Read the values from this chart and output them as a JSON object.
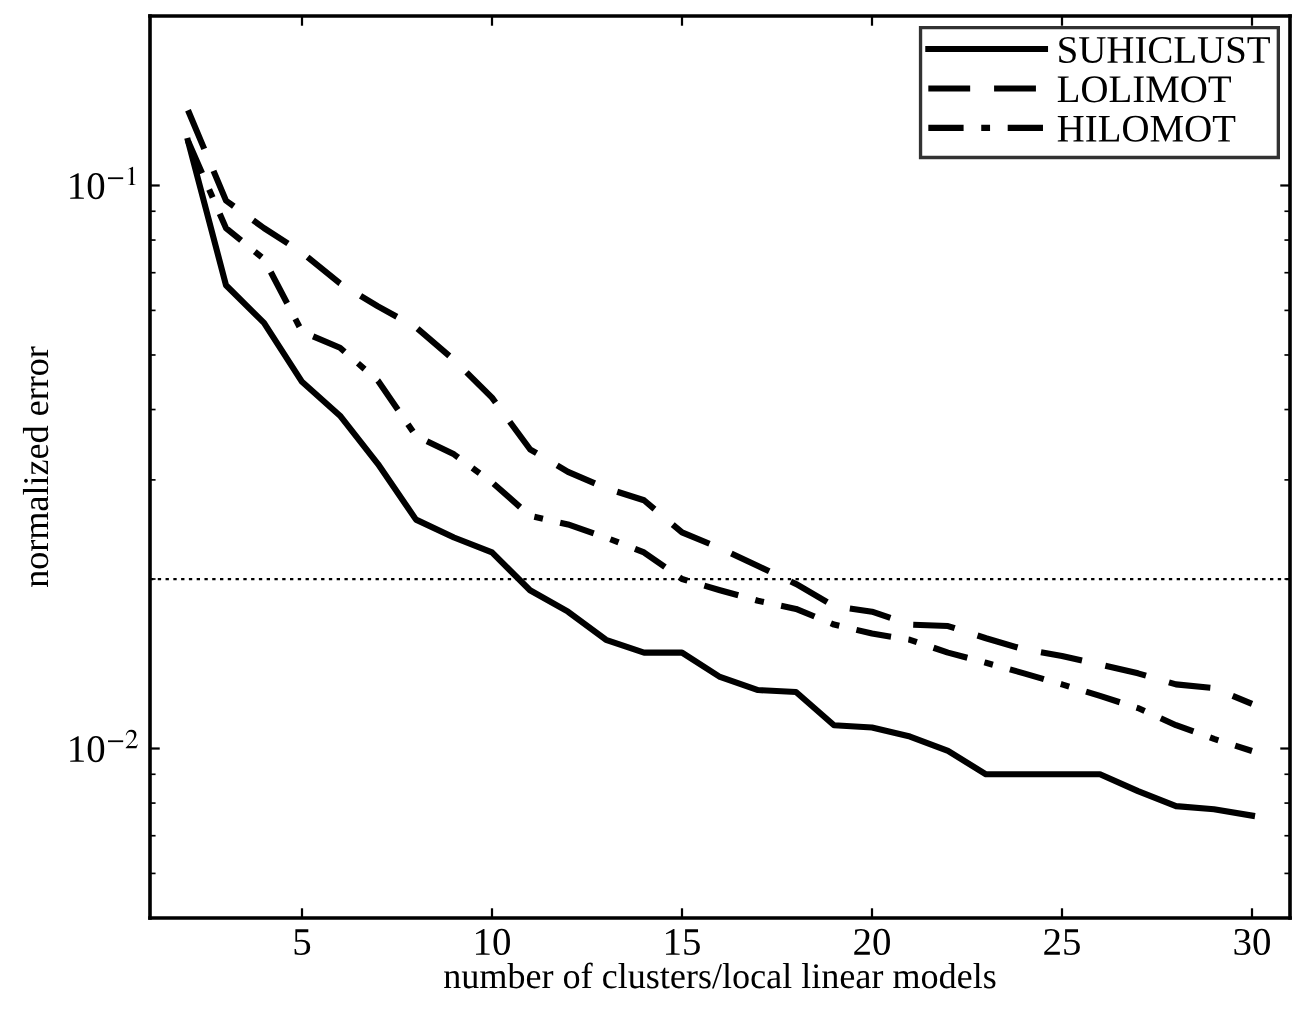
{
  "chart_data": {
    "type": "line",
    "xlabel": "number of clusters/local linear models",
    "ylabel": "normalized error",
    "x": [
      2,
      3,
      4,
      5,
      6,
      7,
      8,
      9,
      10,
      11,
      12,
      13,
      14,
      15,
      16,
      17,
      18,
      19,
      20,
      21,
      22,
      23,
      24,
      25,
      26,
      27,
      28,
      29,
      30
    ],
    "series": [
      {
        "name": "SUHICLUST",
        "color": "#000000",
        "line_style": "solid",
        "values": [
          0.12,
          0.0665,
          0.057,
          0.0448,
          0.039,
          0.032,
          0.0255,
          0.0237,
          0.0223,
          0.0191,
          0.0175,
          0.0156,
          0.0148,
          0.0148,
          0.0134,
          0.0127,
          0.0126,
          0.011,
          0.0109,
          0.0105,
          0.0099,
          0.009,
          0.009,
          0.009,
          0.009,
          0.0084,
          0.0079,
          0.0078,
          0.0076
        ]
      },
      {
        "name": "LOLIMOT",
        "color": "#000000",
        "line_style": "dashed",
        "values": [
          0.136,
          0.094,
          0.084,
          0.076,
          0.067,
          0.061,
          0.056,
          0.049,
          0.042,
          0.034,
          0.031,
          0.029,
          0.0276,
          0.0242,
          0.0227,
          0.0211,
          0.0196,
          0.0179,
          0.0175,
          0.0166,
          0.0165,
          0.0157,
          0.015,
          0.0146,
          0.0141,
          0.0136,
          0.013,
          0.0128,
          0.012
        ]
      },
      {
        "name": "HILOMOT",
        "color": "#000000",
        "line_style": "dashdot",
        "values": [
          0.12,
          0.084,
          0.074,
          0.055,
          0.0515,
          0.045,
          0.0359,
          0.0333,
          0.0297,
          0.0259,
          0.025,
          0.0237,
          0.0223,
          0.02,
          0.0191,
          0.0183,
          0.0177,
          0.0166,
          0.016,
          0.0156,
          0.0148,
          0.0142,
          0.0136,
          0.013,
          0.0124,
          0.0118,
          0.011,
          0.0104,
          0.0099
        ]
      }
    ],
    "log": "y",
    "xlim": [
      1,
      31
    ],
    "ylim": [
      0.005,
      0.2
    ],
    "xticks": [
      5,
      10,
      15,
      20,
      25,
      30
    ],
    "yticks": [
      {
        "value": 0.1,
        "label": "10$^{−1}$"
      },
      {
        "value": 0.01,
        "label": "10$^{−2}$"
      }
    ],
    "ref_lines": [
      {
        "axis": "y",
        "value": 0.02,
        "color": "#000000",
        "line_style": "dotted"
      }
    ],
    "legend": "top right",
    "grid": false,
    "marker": "none"
  }
}
